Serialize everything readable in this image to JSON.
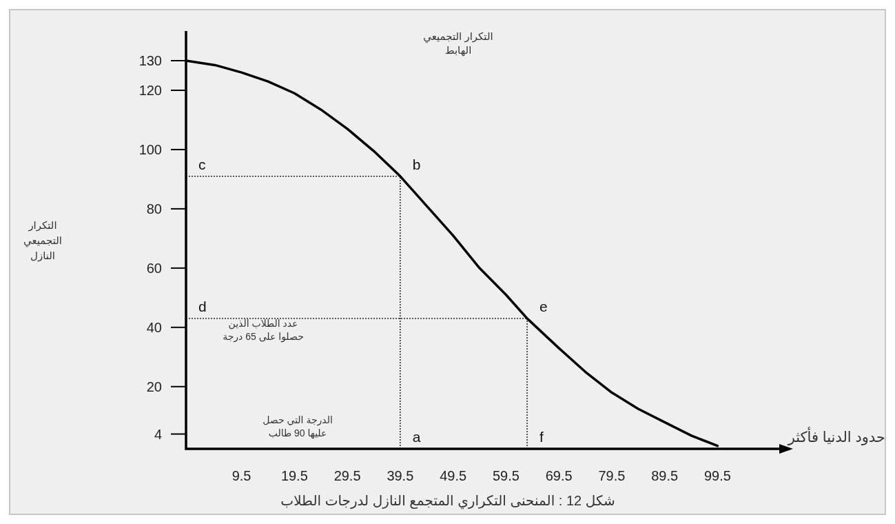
{
  "chart_data": {
    "type": "line",
    "xlabel": "حدود الدنيا فأكثر",
    "xlim": [
      -1,
      113
    ],
    "ylim": [
      -1,
      140
    ],
    "xticks": [
      9.5,
      19.5,
      29.5,
      39.5,
      49.5,
      59.5,
      69.5,
      79.5,
      89.5,
      99.5
    ],
    "yticks": [
      4,
      20,
      40,
      60,
      80,
      100,
      120,
      130
    ],
    "grid": false,
    "marker": "none",
    "series": [
      {
        "color": "#000000",
        "line_style": "solid",
        "x": [
          -1,
          4.5,
          9.5,
          14.5,
          19.5,
          24.5,
          29.5,
          34.5,
          39.5,
          44.5,
          49.5,
          54.5,
          59.5,
          63.5,
          69.5,
          74.5,
          79.5,
          84.5,
          89.5,
          94.5,
          99.5
        ],
        "values": [
          130,
          128.5,
          126,
          123,
          119,
          113.5,
          107,
          99.5,
          91,
          81,
          71,
          60,
          51,
          43,
          33,
          25,
          18,
          12.5,
          8,
          3.5,
          0
        ]
      },
      {
        "color": "#000000",
        "line_style": "dotted",
        "x": [
          -1,
          39.5
        ],
        "values": [
          91,
          91
        ]
      },
      {
        "color": "#000000",
        "line_style": "dotted",
        "x": [
          39.5,
          39.5
        ],
        "values": [
          -1,
          91
        ]
      },
      {
        "color": "#000000",
        "line_style": "dotted",
        "x": [
          -1,
          63.5
        ],
        "values": [
          43,
          43
        ]
      },
      {
        "color": "#000000",
        "line_style": "dotted",
        "x": [
          63.5,
          63.5
        ],
        "values": [
          -1,
          43
        ]
      }
    ],
    "annotations": [
      "التكرار التجميعي الهابط",
      "عدد الطلاب الذين حصلوا على 65 درجة",
      "الدرجة التي حصل عليها 90 طالب",
      "شكل 12 : المنحنى التكراري المتجمع النازل لدرجات الطلاب",
      "التكرار التجميعي النازل",
      {
        "text": "c",
        "x": -1,
        "y": 91
      },
      {
        "text": "b",
        "x": 39.5,
        "y": 91
      },
      {
        "text": "d",
        "x": -1,
        "y": 43
      },
      {
        "text": "e",
        "x": 63.5,
        "y": 43
      },
      {
        "text": "a",
        "x": 39.5,
        "y": -1
      },
      {
        "text": "f",
        "x": 63.5,
        "y": -1
      }
    ]
  }
}
